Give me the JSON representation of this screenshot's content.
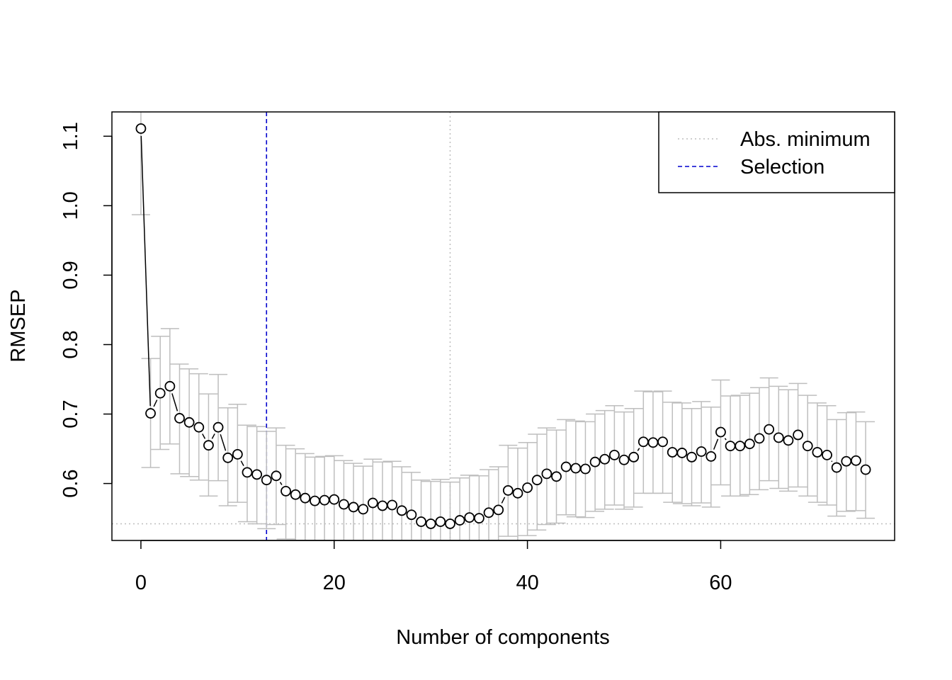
{
  "chart_data": {
    "type": "scatter",
    "xlabel": "Number of components",
    "ylabel": "RMSEP",
    "xlim": [
      -3,
      78
    ],
    "ylim": [
      0.518,
      1.135
    ],
    "x_ticks": [
      0,
      20,
      40,
      60
    ],
    "y_ticks": [
      0.6,
      0.7,
      0.8,
      0.9,
      1.0,
      1.1
    ],
    "y_tick_labels": [
      "0.6",
      "0.7",
      "0.8",
      "0.9",
      "1.0",
      "1.1"
    ],
    "x_tick_labels": [
      "0",
      "20",
      "40",
      "60"
    ],
    "grid": false,
    "legend_position": "top-right",
    "legend": [
      {
        "label": "Abs. minimum",
        "color": "#bebebe",
        "style": "dotted"
      },
      {
        "label": "Selection",
        "color": "#0000cd",
        "style": "dashed"
      }
    ],
    "abs_minimum": {
      "x": 32,
      "y": 0.542
    },
    "selection": {
      "x": 13
    },
    "colors": {
      "points": "#000000",
      "errorbars": "#bebebe",
      "selection": "#0000cd",
      "minimum": "#bebebe"
    },
    "series": [
      {
        "values": [
          1.111,
          0.701,
          0.73,
          0.74,
          0.694,
          0.688,
          0.681,
          0.655,
          0.681,
          0.637,
          0.642,
          0.616,
          0.613,
          0.605,
          0.611,
          0.589,
          0.584,
          0.579,
          0.575,
          0.576,
          0.577,
          0.57,
          0.566,
          0.563,
          0.572,
          0.568,
          0.569,
          0.561,
          0.555,
          0.545,
          0.542,
          0.545,
          0.542,
          0.547,
          0.551,
          0.55,
          0.558,
          0.562,
          0.59,
          0.586,
          0.594,
          0.605,
          0.614,
          0.61,
          0.624,
          0.622,
          0.621,
          0.631,
          0.635,
          0.641,
          0.634,
          0.638,
          0.66,
          0.659,
          0.66,
          0.645,
          0.644,
          0.638,
          0.646,
          0.639,
          0.674,
          0.654,
          0.654,
          0.657,
          0.665,
          0.678,
          0.666,
          0.662,
          0.67,
          0.654,
          0.645,
          0.641,
          0.623,
          0.632,
          0.633,
          0.62
        ],
        "error_low": [
          0.987,
          0.623,
          0.649,
          0.657,
          0.614,
          0.61,
          0.605,
          0.582,
          0.604,
          0.568,
          0.573,
          0.545,
          0.542,
          0.535,
          0.541,
          0.52,
          0.518,
          0.518,
          0.518,
          0.518,
          0.518,
          0.518,
          0.518,
          0.518,
          0.518,
          0.518,
          0.518,
          0.518,
          0.518,
          0.518,
          0.518,
          0.518,
          0.518,
          0.518,
          0.518,
          0.518,
          0.518,
          0.518,
          0.524,
          0.518,
          0.525,
          0.533,
          0.541,
          0.543,
          0.555,
          0.552,
          0.551,
          0.56,
          0.563,
          0.569,
          0.563,
          0.566,
          0.586,
          0.586,
          0.586,
          0.573,
          0.571,
          0.568,
          0.572,
          0.566,
          0.598,
          0.582,
          0.582,
          0.584,
          0.591,
          0.604,
          0.593,
          0.589,
          0.595,
          0.582,
          0.573,
          0.569,
          0.553,
          0.56,
          0.561,
          0.55
        ],
        "error_high": [
          1.135,
          0.78,
          0.812,
          0.823,
          0.772,
          0.765,
          0.758,
          0.729,
          0.757,
          0.709,
          0.714,
          0.684,
          0.682,
          0.675,
          0.68,
          0.655,
          0.65,
          0.643,
          0.638,
          0.639,
          0.64,
          0.633,
          0.629,
          0.625,
          0.635,
          0.631,
          0.632,
          0.624,
          0.616,
          0.605,
          0.603,
          0.606,
          0.602,
          0.608,
          0.612,
          0.611,
          0.62,
          0.624,
          0.655,
          0.651,
          0.659,
          0.671,
          0.68,
          0.677,
          0.692,
          0.69,
          0.689,
          0.7,
          0.705,
          0.712,
          0.703,
          0.708,
          0.733,
          0.732,
          0.733,
          0.717,
          0.716,
          0.708,
          0.718,
          0.71,
          0.749,
          0.726,
          0.727,
          0.73,
          0.738,
          0.752,
          0.74,
          0.735,
          0.744,
          0.727,
          0.716,
          0.712,
          0.692,
          0.702,
          0.703,
          0.689
        ]
      }
    ]
  }
}
